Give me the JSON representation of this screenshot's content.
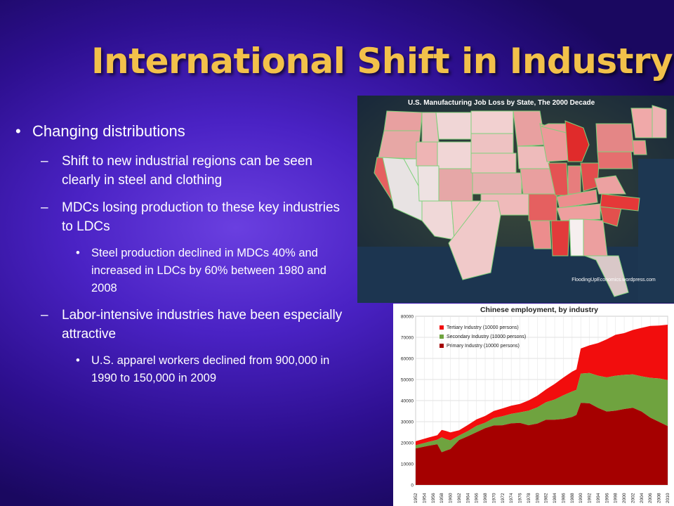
{
  "slide": {
    "title": "International Shift in Industry",
    "bullets": [
      {
        "level": 1,
        "text": "Changing distributions"
      },
      {
        "level": 2,
        "text": "Shift to new industrial regions can be seen clearly in steel and clothing"
      },
      {
        "level": 2,
        "text": "MDCs losing production to these key industries to LDCs"
      },
      {
        "level": 3,
        "text": "Steel production declined in MDCs 40% and increased in LDCs by 60% between 1980 and 2008"
      },
      {
        "level": 2,
        "text": "Labor-intensive industries have been especially attractive"
      },
      {
        "level": 3,
        "text": "U.S. apparel workers declined from 900,000 in 1990 to 150,000 in 2009"
      }
    ]
  },
  "map": {
    "title": "U.S. Manufacturing Job Loss by State, The 2000 Decade",
    "credit": "FloodingUpEconomics.wordpress.com"
  },
  "chart_data": {
    "type": "area",
    "title": "Chinese employment, by industry",
    "ylim": [
      0,
      80000
    ],
    "yticks": [
      0,
      10000,
      20000,
      30000,
      40000,
      50000,
      60000,
      70000,
      80000
    ],
    "xticks": [
      "1952",
      "1954",
      "1956",
      "1958",
      "1960",
      "1962",
      "1964",
      "1966",
      "1968",
      "1970",
      "1972",
      "1974",
      "1976",
      "1978",
      "1980",
      "1982",
      "1984",
      "1986",
      "1988",
      "1990",
      "1992",
      "1994",
      "1996",
      "1998",
      "2000",
      "2002",
      "2004",
      "2006",
      "2008",
      "2010"
    ],
    "x": [
      1952,
      1955,
      1957,
      1958,
      1959,
      1960,
      1962,
      1964,
      1966,
      1968,
      1970,
      1972,
      1974,
      1976,
      1978,
      1980,
      1982,
      1984,
      1986,
      1988,
      1989,
      1990,
      1992,
      1994,
      1996,
      1998,
      2000,
      2002,
      2004,
      2006,
      2008,
      2010
    ],
    "series": [
      {
        "name": "Primary Industry (10000 persons)",
        "color": "#a50000",
        "values": [
          17300,
          18600,
          19300,
          15500,
          16300,
          17000,
          21300,
          23100,
          25000,
          26900,
          28200,
          28300,
          29200,
          29400,
          28300,
          29100,
          30900,
          30900,
          31300,
          32200,
          33200,
          38900,
          38700,
          36500,
          34800,
          35200,
          36000,
          36600,
          34800,
          31900,
          29900,
          27900
        ]
      },
      {
        "name": "Secondary Industry (10000 persons)",
        "color": "#6fa33f",
        "values": [
          1500,
          1800,
          2100,
          7100,
          5400,
          4100,
          2100,
          2400,
          3000,
          2600,
          3500,
          4300,
          4500,
          5000,
          6900,
          7700,
          8300,
          9600,
          11200,
          12100,
          11900,
          13900,
          14400,
          15300,
          16200,
          16600,
          16200,
          15800,
          16700,
          18900,
          20600,
          21800
        ]
      },
      {
        "name": "Tertiary Industry (10000 persons)",
        "color": "#f20d0d",
        "values": [
          1900,
          2100,
          2200,
          3500,
          3900,
          3800,
          2500,
          2900,
          3100,
          3200,
          3400,
          3700,
          3900,
          4000,
          4900,
          5500,
          6100,
          7400,
          8400,
          9400,
          9700,
          11900,
          13100,
          15500,
          18100,
          19400,
          19800,
          21100,
          23000,
          24600,
          25100,
          26300
        ]
      }
    ]
  }
}
